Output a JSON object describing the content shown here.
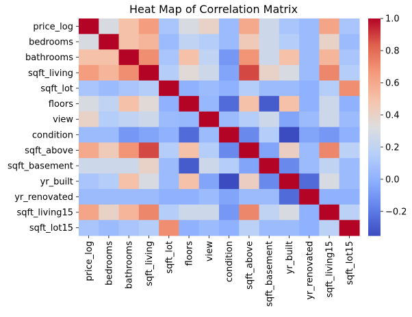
{
  "chart_data": {
    "type": "heatmap",
    "title": "Heat Map of Correlation Matrix",
    "xlabel": "",
    "ylabel": "",
    "labels": [
      "price_log",
      "bedrooms",
      "bathrooms",
      "sqft_living",
      "sqft_lot",
      "floors",
      "view",
      "condition",
      "sqft_above",
      "sqft_basement",
      "yr_built",
      "yr_renovated",
      "sqft_living15",
      "sqft_lot15"
    ],
    "matrix": [
      [
        1.0,
        0.3,
        0.5,
        0.65,
        0.1,
        0.3,
        0.4,
        0.05,
        0.6,
        0.25,
        0.1,
        0.05,
        0.62,
        0.1
      ],
      [
        0.3,
        1.0,
        0.5,
        0.55,
        0.05,
        0.2,
        0.15,
        0.05,
        0.45,
        0.25,
        0.15,
        0.05,
        0.4,
        0.05
      ],
      [
        0.5,
        0.5,
        1.0,
        0.7,
        0.1,
        0.5,
        0.2,
        -0.1,
        0.68,
        0.25,
        0.5,
        0.05,
        0.55,
        0.1
      ],
      [
        0.65,
        0.55,
        0.7,
        1.0,
        0.15,
        0.35,
        0.25,
        -0.05,
        0.88,
        0.4,
        0.3,
        0.05,
        0.72,
        0.15
      ],
      [
        0.1,
        0.05,
        0.1,
        0.15,
        1.0,
        0.0,
        0.05,
        0.0,
        0.15,
        0.05,
        0.05,
        0.0,
        0.15,
        0.7
      ],
      [
        0.3,
        0.2,
        0.5,
        0.35,
        0.0,
        1.0,
        0.03,
        -0.25,
        0.5,
        -0.3,
        0.5,
        0.0,
        0.25,
        0.0
      ],
      [
        0.4,
        0.15,
        0.2,
        0.25,
        0.05,
        0.03,
        1.0,
        0.05,
        0.15,
        0.25,
        -0.05,
        0.05,
        0.25,
        0.05
      ],
      [
        0.05,
        0.05,
        -0.1,
        -0.05,
        0.0,
        -0.25,
        0.05,
        1.0,
        -0.15,
        0.15,
        -0.35,
        -0.05,
        -0.1,
        0.0
      ],
      [
        0.6,
        0.45,
        0.68,
        0.88,
        0.15,
        0.5,
        0.15,
        -0.15,
        1.0,
        -0.05,
        0.42,
        0.05,
        0.72,
        0.18
      ],
      [
        0.25,
        0.25,
        0.25,
        0.4,
        0.05,
        -0.3,
        0.25,
        0.15,
        -0.05,
        1.0,
        -0.15,
        0.05,
        0.2,
        0.05
      ],
      [
        0.1,
        0.15,
        0.5,
        0.3,
        0.05,
        0.5,
        -0.05,
        -0.35,
        0.42,
        -0.15,
        1.0,
        -0.25,
        0.3,
        0.05
      ],
      [
        0.05,
        0.05,
        0.05,
        0.05,
        0.0,
        0.0,
        0.05,
        -0.05,
        0.05,
        0.05,
        -0.25,
        1.0,
        0.0,
        0.0
      ],
      [
        0.62,
        0.4,
        0.55,
        0.72,
        0.15,
        0.25,
        0.25,
        -0.1,
        0.72,
        0.2,
        0.3,
        0.0,
        1.0,
        0.18
      ],
      [
        0.1,
        0.05,
        0.1,
        0.15,
        0.7,
        0.0,
        0.05,
        0.0,
        0.18,
        0.05,
        0.05,
        0.0,
        0.18,
        1.0
      ]
    ],
    "colorbar": {
      "ticks": [
        "1.0",
        "0.8",
        "0.6",
        "0.4",
        "0.2",
        "0.0",
        "−0.2"
      ],
      "tick_values": [
        1.0,
        0.8,
        0.6,
        0.4,
        0.2,
        0.0,
        -0.2
      ],
      "vmin": -0.35,
      "vmax": 1.0
    },
    "colormap": "coolwarm",
    "colors": {
      "low": "#3b4cc0",
      "mid": "#dddddd",
      "high": "#b40426"
    }
  }
}
